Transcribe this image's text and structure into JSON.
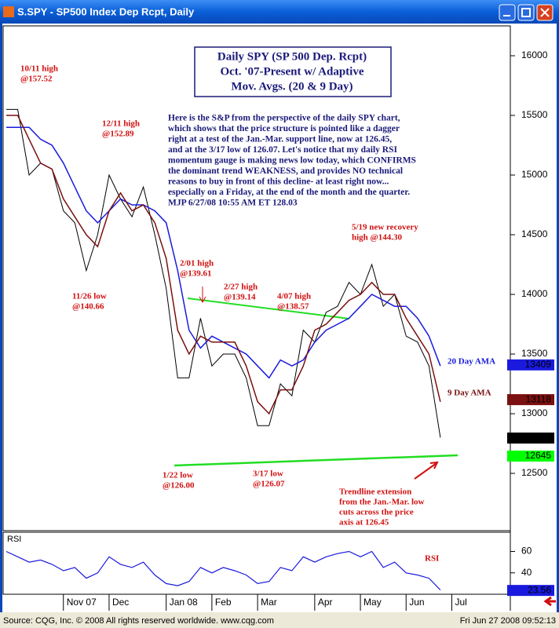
{
  "window": {
    "title": "S.SPY - SP500 Index Dep Rcpt, Daily",
    "source": "Source: CQG, Inc. © 2008 All rights reserved worldwide. www.cqg.com",
    "timestamp": "Fri Jun 27 2008 09:52:13"
  },
  "chart_data": {
    "type": "line",
    "title": [
      "Daily SPY (SP 500 Dep. Rcpt)",
      "Oct. '07-Present w/ Adaptive",
      "Mov. Avgs. (20 & 9 Day)"
    ],
    "commentary": [
      "Here is the S&P from the perspective of the daily SPY chart,",
      "which shows that the price structure is pointed like a dagger",
      "right at a test of the Jan.-Mar. support line, now at 126.45,",
      "and at the 3/17 low of 126.07. Let's notice that my daily RSI",
      "momentum gauge is making news low today, which CONFIRMS",
      "the dominant trend WEAKNESS, and provides NO technical",
      "reasons to buy in front of this decline- at least right now...",
      "especially on a Friday, at the end of the month and the quarter.",
      "MJP  6/27/08 10:55 AM ET  128.03"
    ],
    "annotations": [
      {
        "lines": [
          "10/11 high",
          "@157.52"
        ]
      },
      {
        "lines": [
          "12/11 high",
          "@152.89"
        ]
      },
      {
        "lines": [
          "11/26 low",
          "@140.66"
        ]
      },
      {
        "lines": [
          "2/01 high",
          "@139.61"
        ]
      },
      {
        "lines": [
          "2/27 high",
          "@139.14"
        ]
      },
      {
        "lines": [
          "4/07 high",
          "@138.57"
        ]
      },
      {
        "lines": [
          "5/19 new recovery",
          "high @144.30"
        ]
      },
      {
        "lines": [
          "1/22 low",
          "@126.00"
        ]
      },
      {
        "lines": [
          "3/17 low",
          "@126.07"
        ]
      },
      {
        "lines": [
          "Trendline extension",
          "from the Jan.-Mar. low",
          "cuts across the price",
          "axis at 126.45"
        ]
      }
    ],
    "categories": [
      null,
      null,
      null,
      null,
      null,
      "Nov 07",
      null,
      null,
      null,
      "Dec",
      null,
      null,
      null,
      null,
      "Jan 08",
      null,
      null,
      null,
      "Feb",
      null,
      null,
      null,
      "Mar",
      null,
      null,
      null,
      null,
      "Apr",
      null,
      null,
      null,
      "May",
      null,
      null,
      null,
      "Jun",
      null,
      null,
      null,
      "Jul"
    ],
    "series": [
      {
        "color": "#000000",
        "values": [
          15550,
          15550,
          15000,
          15100,
          15050,
          14700,
          14600,
          14200,
          14500,
          15000,
          14800,
          14650,
          14900,
          14500,
          14050,
          13300,
          13300,
          13800,
          13400,
          13500,
          13500,
          13300,
          12900,
          12900,
          13250,
          13150,
          13700,
          13600,
          13850,
          13900,
          14100,
          14000,
          14250,
          13900,
          14000,
          13650,
          13600,
          13400,
          12800,
          null
        ]
      },
      {
        "name": "20 Day AMA",
        "color": "#1a1adf",
        "values": [
          15400,
          15400,
          15400,
          15300,
          15250,
          15100,
          14900,
          14700,
          14600,
          14700,
          14800,
          14750,
          14750,
          14700,
          14600,
          14200,
          13700,
          13550,
          13650,
          13600,
          13550,
          13500,
          13400,
          13300,
          13450,
          13400,
          13450,
          13600,
          13700,
          13750,
          13800,
          13900,
          14000,
          13950,
          13900,
          13900,
          13800,
          13650,
          13400,
          null
        ]
      },
      {
        "name": "9 Day AMA",
        "color": "#7a1010",
        "values": [
          15500,
          15500,
          15300,
          15100,
          15050,
          14800,
          14650,
          14500,
          14400,
          14700,
          14850,
          14700,
          14750,
          14600,
          14300,
          13700,
          13500,
          13650,
          13600,
          13600,
          13600,
          13400,
          13100,
          13000,
          13200,
          13200,
          13400,
          13700,
          13750,
          13850,
          13950,
          14000,
          14100,
          14000,
          14000,
          13800,
          13650,
          13500,
          13100,
          null
        ]
      }
    ],
    "ylim": [
      12020,
      16250
    ],
    "yticks": [
      12500,
      13000,
      13500,
      14000,
      14500,
      15000,
      15500,
      16000
    ],
    "last_values": [
      {
        "value": 13409,
        "color": "#1a1adf"
      },
      {
        "value": 13118,
        "color": "#7a1010"
      },
      {
        "value": 12796,
        "color": "#000000"
      },
      {
        "value": 12645,
        "color": "#00ff00"
      }
    ],
    "rsi": {
      "name": "RSI",
      "color": "#1a1adf",
      "values": [
        60,
        55,
        50,
        52,
        48,
        42,
        45,
        35,
        40,
        55,
        48,
        45,
        50,
        38,
        30,
        28,
        32,
        45,
        40,
        45,
        42,
        38,
        30,
        32,
        45,
        42,
        55,
        50,
        55,
        58,
        60,
        55,
        60,
        45,
        50,
        40,
        38,
        35,
        24,
        null
      ],
      "ylim": [
        20,
        78
      ],
      "yticks": [
        40,
        60
      ],
      "last": 23.56
    }
  }
}
